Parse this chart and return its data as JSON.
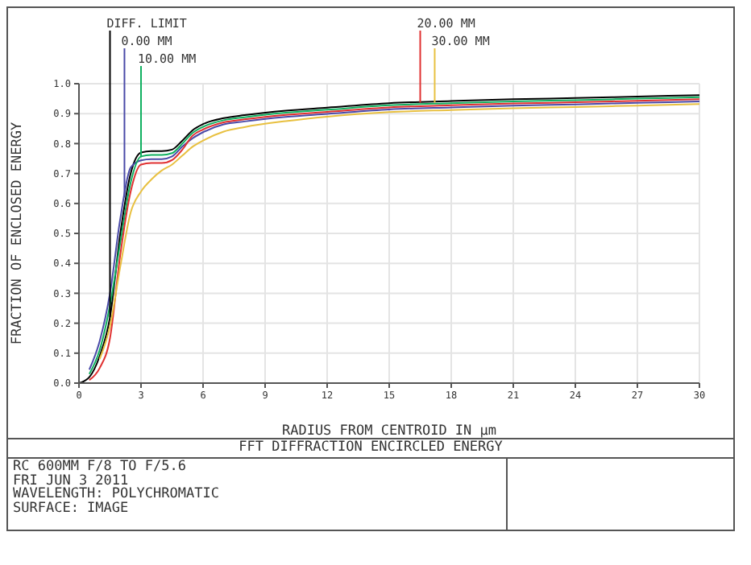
{
  "chart_data": {
    "type": "line",
    "title": "FFT DIFFRACTION ENCIRCLED ENERGY",
    "xlabel": "RADIUS FROM CENTROID IN µm",
    "ylabel": "FRACTION OF ENCLOSED ENERGY",
    "x": [
      0,
      0.5,
      1,
      1.5,
      2,
      2.5,
      3,
      3.5,
      4,
      4.5,
      5,
      5.5,
      6,
      7,
      8,
      10,
      12,
      15,
      18,
      21,
      24,
      27,
      30
    ],
    "series": [
      {
        "color": "#000000",
        "values": [
          0,
          0.02,
          0.09,
          0.22,
          0.5,
          0.7,
          0.77,
          0.775,
          0.775,
          0.78,
          0.81,
          0.845,
          0.865,
          0.885,
          0.895,
          0.91,
          0.92,
          0.935,
          0.942,
          0.948,
          0.952,
          0.957,
          0.962
        ]
      },
      {
        "color": "#4a4aa8",
        "values": [
          null,
          0.045,
          0.14,
          0.3,
          0.55,
          0.72,
          0.744,
          0.748,
          0.748,
          0.757,
          0.79,
          0.818,
          0.838,
          0.864,
          0.874,
          0.889,
          0.899,
          0.914,
          0.921,
          0.927,
          0.931,
          0.936,
          0.941
        ]
      },
      {
        "color": "#10b060",
        "values": [
          null,
          0.03,
          0.11,
          0.26,
          0.47,
          0.67,
          0.757,
          0.762,
          0.762,
          0.768,
          0.8,
          0.836,
          0.856,
          0.878,
          0.888,
          0.903,
          0.913,
          0.928,
          0.935,
          0.941,
          0.945,
          0.95,
          0.955
        ]
      },
      {
        "color": "#e03030",
        "values": [
          null,
          0.01,
          0.05,
          0.15,
          0.43,
          0.64,
          0.73,
          0.735,
          0.735,
          0.745,
          0.78,
          0.827,
          0.847,
          0.871,
          0.881,
          0.896,
          0.906,
          0.921,
          0.928,
          0.934,
          0.938,
          0.943,
          0.948
        ]
      },
      {
        "color": "#e8c040",
        "values": [
          null,
          null,
          0.08,
          0.19,
          0.39,
          0.57,
          0.64,
          0.68,
          0.71,
          0.73,
          0.76,
          0.79,
          0.81,
          0.84,
          0.855,
          0.875,
          0.89,
          0.905,
          0.912,
          0.918,
          0.922,
          0.927,
          0.932
        ]
      }
    ],
    "xlim": [
      0,
      30
    ],
    "xticks": [
      0,
      3,
      6,
      9,
      12,
      15,
      18,
      21,
      24,
      27,
      30
    ],
    "ylim": [
      0,
      1
    ],
    "yticks": [
      {
        "value": 0,
        "label": "0.0"
      },
      0.1,
      0.2,
      0.3,
      0.4,
      0.5,
      0.6,
      0.7,
      0.8,
      0.9,
      {
        "value": 1,
        "label": "1.0"
      }
    ],
    "grid": true,
    "legend": false,
    "marker": "none",
    "line_style": "solid",
    "annotations": [
      {
        "text": "DIFF. LIMIT",
        "x": 1.5,
        "y": 0.22
      },
      {
        "text": "0.00 MM",
        "x": 2.2,
        "y": 0.62
      },
      {
        "text": "10.00 MM",
        "x": 3,
        "y": 0.755
      },
      {
        "text": "20.00 MM",
        "x": 16.5,
        "y": 0.937
      },
      {
        "text": "30.00 MM",
        "x": 17.2,
        "y": 0.937
      },
      "RC 600MM F/8 TO F/5.6",
      "FRI JUN 3 2011",
      "WAVELENGTH: POLYCHROMATIC",
      "SURFACE: IMAGE"
    ]
  }
}
